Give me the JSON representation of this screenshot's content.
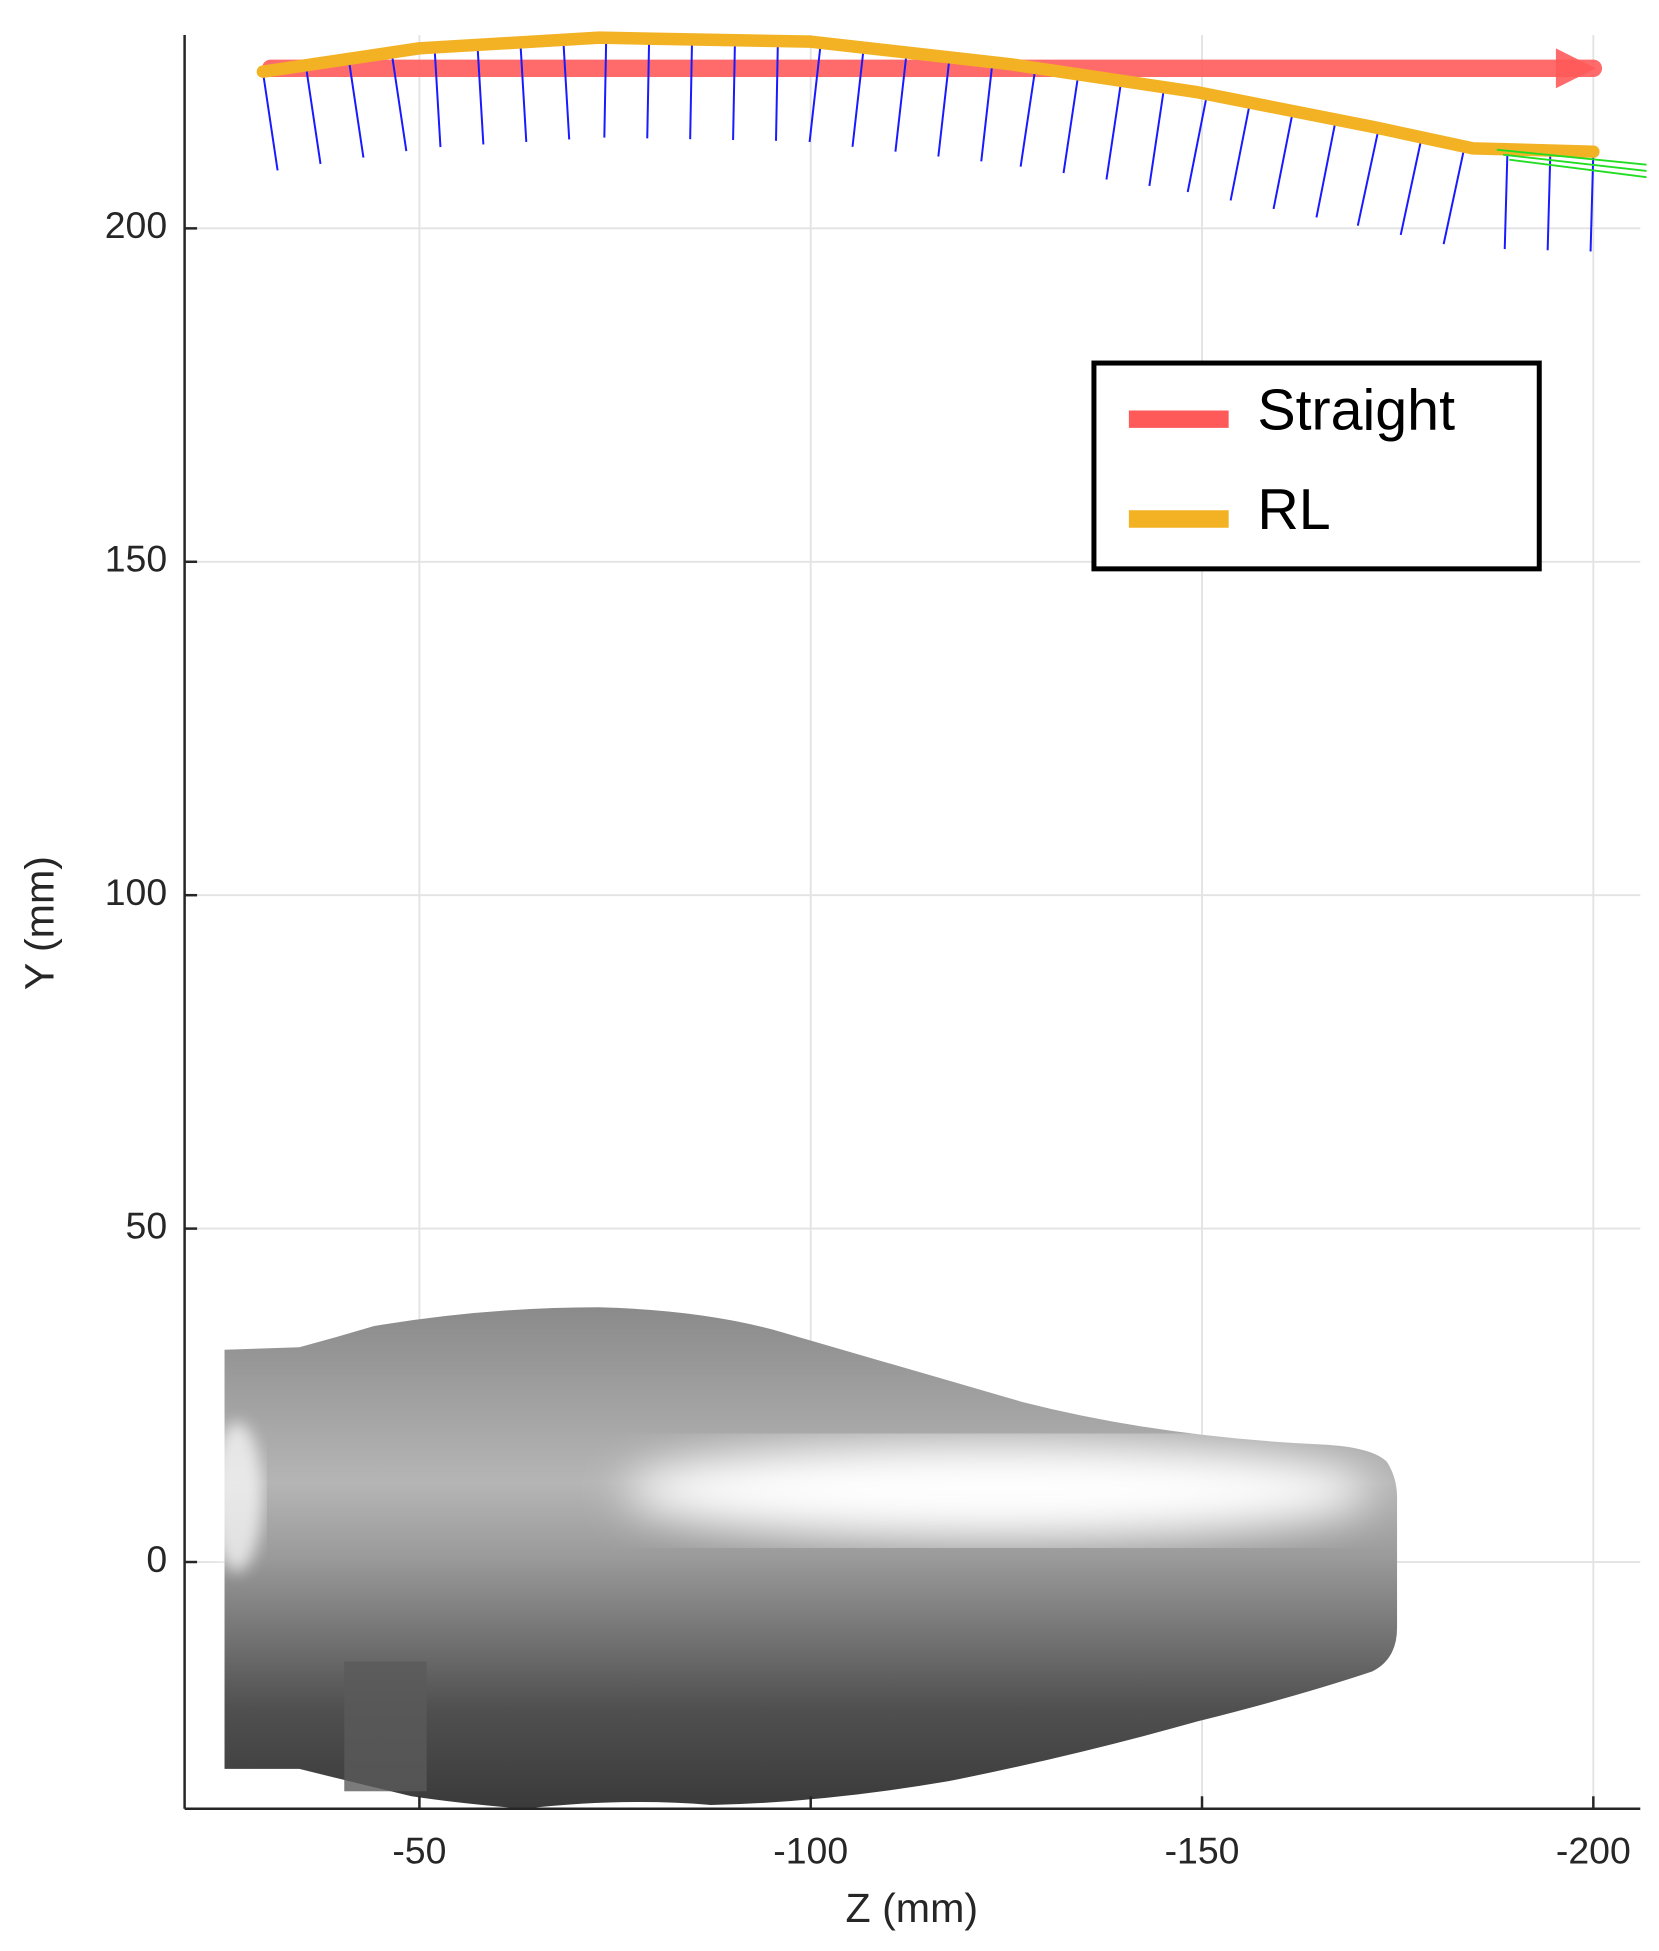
{
  "chart_data": {
    "type": "line",
    "xlabel": "Z (mm)",
    "ylabel": "Y (mm)",
    "xlim": [
      -20,
      -206
    ],
    "ylim": [
      -37,
      229
    ],
    "xticks": [
      -50,
      -100,
      -150,
      -200
    ],
    "yticks": [
      0,
      50,
      100,
      150,
      200
    ],
    "grid": true,
    "legend": "upper right",
    "series": [
      {
        "name": "Straight",
        "color": "#ff5a5a",
        "x": [
          -31,
          -200
        ],
        "values": [
          224,
          224
        ]
      },
      {
        "name": "RL",
        "color": "#f2b224",
        "x": [
          -30,
          -50,
          -73,
          -100,
          -125.6,
          -149.5,
          -171.9,
          -184.6,
          -200
        ],
        "values": [
          223.5,
          227,
          228.6,
          228,
          224.6,
          220.4,
          215.2,
          212,
          211.5
        ]
      }
    ]
  }
}
